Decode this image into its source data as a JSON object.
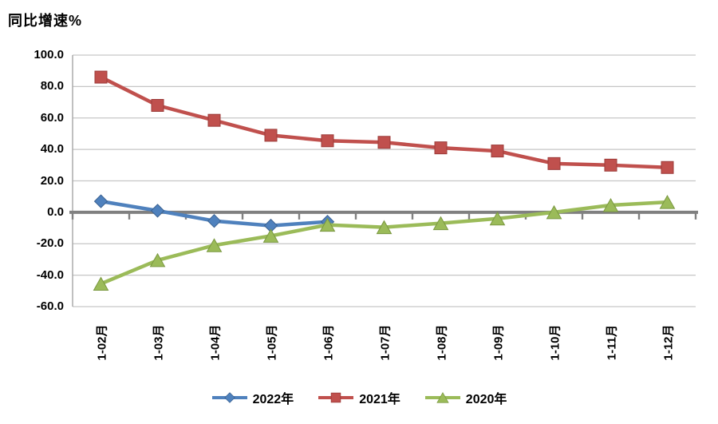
{
  "title": "同比增速%",
  "chart_data": {
    "type": "line",
    "title": "同比增速%",
    "ylabel": "同比增速%",
    "xlabel": "",
    "grid": true,
    "legend_position": "bottom",
    "categories": [
      "1-02月",
      "1-03月",
      "1-04月",
      "1-05月",
      "1-06月",
      "1-07月",
      "1-08月",
      "1-09月",
      "1-10月",
      "1-11月",
      "1-12月"
    ],
    "series": [
      {
        "name": "2022年",
        "marker": "diamond",
        "color": "#4F81BD",
        "edge": "#3A6191",
        "values": [
          7.0,
          1.0,
          -5.5,
          -8.5,
          -6.0,
          null,
          null,
          null,
          null,
          null,
          null
        ]
      },
      {
        "name": "2021年",
        "marker": "square",
        "color": "#C0504D",
        "edge": "#9C3B39",
        "values": [
          86.0,
          68.0,
          58.5,
          49.0,
          45.5,
          44.5,
          41.0,
          39.0,
          31.0,
          30.0,
          28.5
        ]
      },
      {
        "name": "2020年",
        "marker": "triangle",
        "color": "#9BBB59",
        "edge": "#7A9840",
        "values": [
          -45.5,
          -30.5,
          -21.0,
          -15.0,
          -8.0,
          -9.5,
          -7.0,
          -4.0,
          0.0,
          4.5,
          6.5
        ]
      }
    ],
    "y_axis": {
      "min": -60,
      "max": 100,
      "step": 20,
      "tick_labels": [
        "100.0",
        "80.0",
        "60.0",
        "40.0",
        "20.0",
        "0.0",
        "-20.0",
        "-40.0",
        "-60.0"
      ]
    },
    "colors": {
      "gridline": "#C6C6C6",
      "axis_line": "#A6A6A6",
      "zero_axis": "#808080",
      "text": "#000000",
      "background": "#FFFFFF"
    }
  },
  "legend": {
    "items": [
      "2022年",
      "2021年",
      "2020年"
    ]
  }
}
